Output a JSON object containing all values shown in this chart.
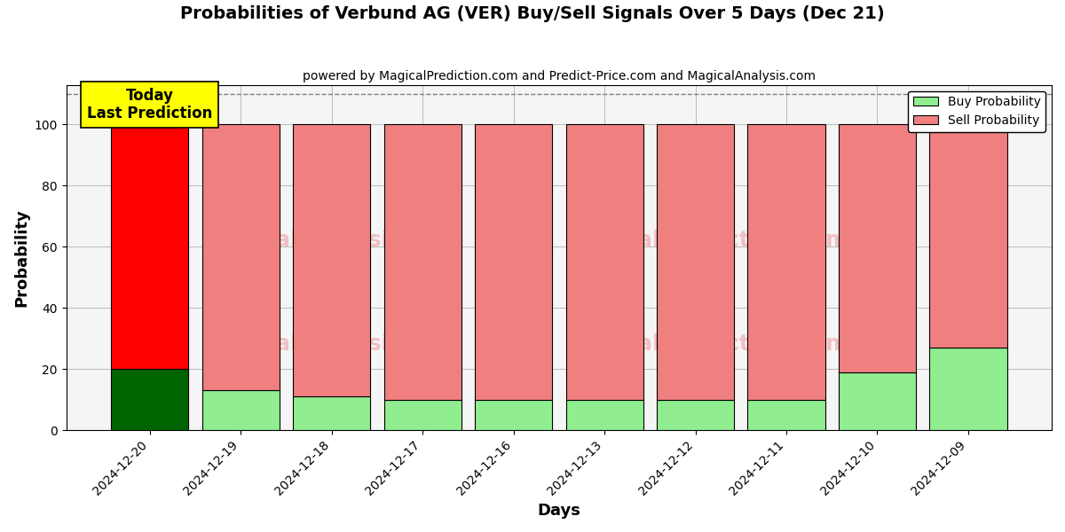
{
  "title": "Probabilities of Verbund AG (VER) Buy/Sell Signals Over 5 Days (Dec 21)",
  "subtitle": "powered by MagicalPrediction.com and Predict-Price.com and MagicalAnalysis.com",
  "xlabel": "Days",
  "ylabel": "Probability",
  "categories": [
    "2024-12-20",
    "2024-12-19",
    "2024-12-18",
    "2024-12-17",
    "2024-12-16",
    "2024-12-13",
    "2024-12-12",
    "2024-12-11",
    "2024-12-10",
    "2024-12-09"
  ],
  "buy_values": [
    20,
    13,
    11,
    10,
    10,
    10,
    10,
    10,
    19,
    27
  ],
  "sell_values": [
    80,
    87,
    89,
    90,
    90,
    90,
    90,
    90,
    81,
    73
  ],
  "buy_colors": [
    "#006400",
    "#90EE90",
    "#90EE90",
    "#90EE90",
    "#90EE90",
    "#90EE90",
    "#90EE90",
    "#90EE90",
    "#90EE90",
    "#90EE90"
  ],
  "sell_colors": [
    "#FF0000",
    "#F08080",
    "#F08080",
    "#F08080",
    "#F08080",
    "#F08080",
    "#F08080",
    "#F08080",
    "#F08080",
    "#F08080"
  ],
  "today_label": "Today\nLast Prediction",
  "today_index": 0,
  "ylim": [
    0,
    113
  ],
  "dashed_line_y": 110,
  "legend_buy_color": "#90EE90",
  "legend_sell_color": "#F08080",
  "legend_buy_label": "Buy Probability",
  "legend_sell_label": "Sell Probability",
  "today_box_color": "#FFFF00",
  "figsize": [
    12,
    6
  ],
  "dpi": 100,
  "bar_width": 0.85,
  "edgecolor": "black",
  "grid_color": "#bbbbbb",
  "plot_bg_color": "#f5f5f5"
}
